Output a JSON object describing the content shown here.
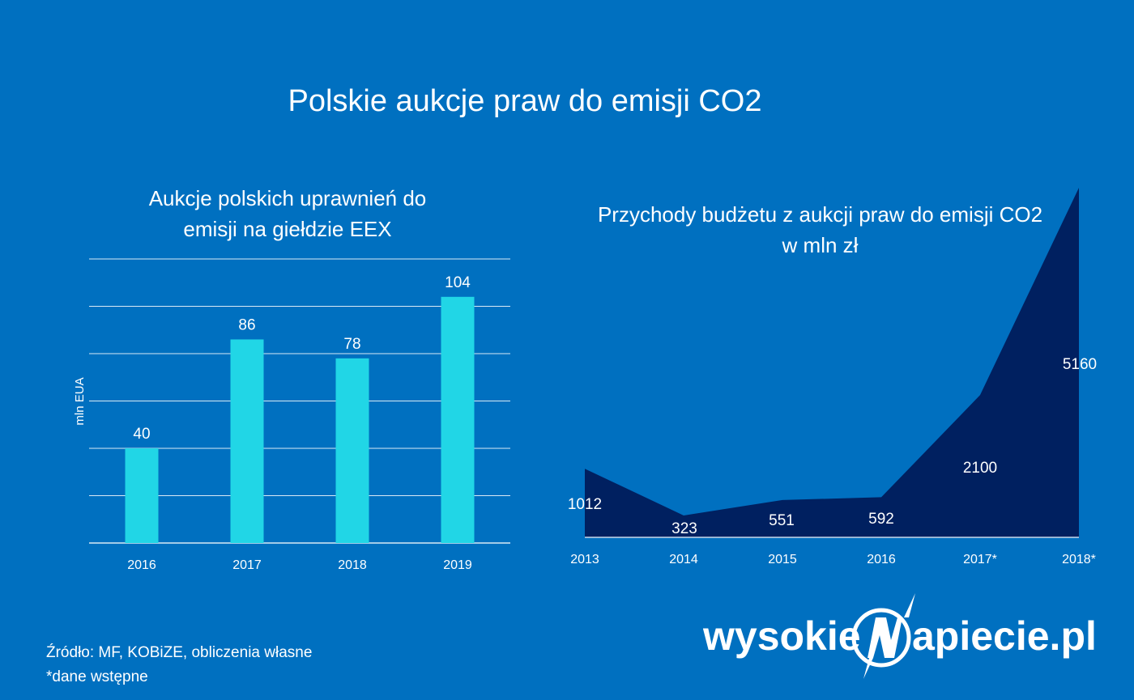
{
  "title": "Polskie aukcje praw do emisji CO2",
  "source_lines": [
    "Źródło: MF, KOBiZE, obliczenia własne",
    "*dane wstępne"
  ],
  "logo_text": "wysokienapiecie.pl",
  "colors": {
    "background": "#0070c0",
    "bar": "#21d6e6",
    "area": "#002060",
    "grid": "#ffffff"
  },
  "chart_data": [
    {
      "type": "bar",
      "title_lines": [
        "Aukcje polskich uprawnień do",
        "emisji na giełdzie EEX"
      ],
      "ylabel": "mln EUA",
      "xlabel": "",
      "categories": [
        "2016",
        "2017",
        "2018",
        "2019"
      ],
      "values": [
        40,
        86,
        78,
        104
      ],
      "data_labels": [
        "40",
        "86",
        "78",
        "104"
      ],
      "ylim": [
        0,
        120
      ],
      "grid_step": 20,
      "grid": true
    },
    {
      "type": "area",
      "title_lines": [
        "Przychody budżetu z aukcji praw do emisji CO2",
        "w mln zł"
      ],
      "categories": [
        "2013",
        "2014",
        "2015",
        "2016",
        "2017*",
        "2018*"
      ],
      "values": [
        1012,
        323,
        551,
        592,
        2100,
        5160
      ],
      "data_labels": [
        "1012",
        "323",
        "551",
        "592",
        "2100",
        "5160"
      ],
      "ylim": [
        0,
        5160
      ],
      "grid": false
    }
  ]
}
